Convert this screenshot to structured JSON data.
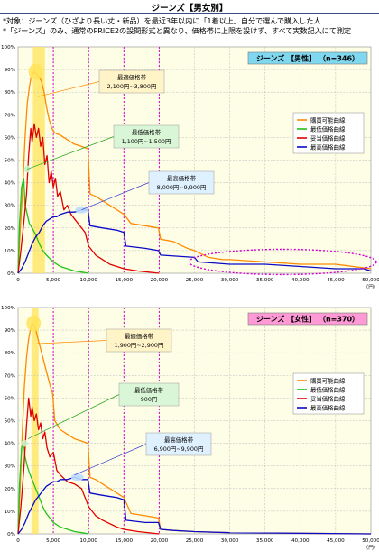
{
  "page": {
    "title": "ジーンズ【男女別】",
    "note1": "*対象：ジーンズ（ひざより長い丈・新品）を最近3年以内に「1着以上」自分で選んで購入した人",
    "note2": "*「ジーンズ」のみ、通常のPRICE2の設問形式と異なり、価格帯に上限を設けず、すべて実数記入にて測定"
  },
  "colors": {
    "purchase": "#ff8a00",
    "lowest": "#22c21a",
    "appropriate": "#e00000",
    "highest": "#0a0ac8",
    "plot_bg": "#fefee6",
    "band": "#ffe45a",
    "grid": "#b9b9b9",
    "guide": "#d400d4",
    "male_header_bg": "#7fd7f0",
    "female_header_bg": "#ff9ad6",
    "callout_bg": "#fff3c8",
    "callout_low_bg": "#d9f7d6",
    "callout_high_bg": "#dff0ff"
  },
  "chart_data": [
    {
      "type": "line",
      "title": "ジーンズ 【男性】 （n=346）",
      "xlabel": "（円）",
      "ylabel": "",
      "xlim": [
        0,
        50000
      ],
      "ylim": [
        0,
        100
      ],
      "x_ticks": [
        "0",
        "5,000",
        "10,000",
        "15,000",
        "20,000",
        "25,000",
        "30,000",
        "35,000",
        "40,000",
        "45,000",
        "50,000"
      ],
      "y_ticks": [
        "0%",
        "10%",
        "20%",
        "30%",
        "40%",
        "50%",
        "60%",
        "70%",
        "80%",
        "90%",
        "100%"
      ],
      "vertical_guides": [
        5000,
        10000,
        15000,
        20000
      ],
      "legend": [
        "購買可能曲線",
        "最低価格曲線",
        "妥当価格曲線",
        "最高価格曲線"
      ],
      "legend_position": "right",
      "series": [
        {
          "name": "購買可能曲線",
          "color_key": "purchase",
          "x": [
            0,
            300,
            700,
            1000,
            1300,
            1600,
            1800,
            2000,
            2300,
            2600,
            2900,
            3300,
            3700,
            4000,
            4400,
            4800,
            5200,
            6000,
            7000,
            8000,
            9000,
            9900,
            10200,
            11000,
            12000,
            13000,
            14000,
            15000,
            16000,
            18000,
            19900,
            20200,
            22000,
            24000,
            25000,
            27000,
            29000,
            30000,
            35000,
            40000,
            45000,
            50000
          ],
          "values": [
            0,
            18,
            40,
            60,
            75,
            82,
            86,
            88,
            89,
            88,
            87,
            85,
            80,
            74,
            68,
            64,
            62,
            61,
            59,
            57,
            56,
            55,
            35,
            34,
            32,
            30,
            28,
            26,
            22,
            21,
            20,
            15,
            14,
            11,
            10,
            7,
            6,
            6,
            5,
            4,
            4,
            2
          ]
        },
        {
          "name": "最低価格曲線",
          "color_key": "lowest",
          "x": [
            0,
            200,
            500,
            800,
            1000,
            1300,
            1600,
            2000,
            2500,
            3000,
            3500,
            4000,
            5000,
            6000,
            7000,
            8000,
            9000,
            10000
          ],
          "values": [
            0,
            22,
            38,
            42,
            30,
            26,
            22,
            20,
            17,
            13,
            10,
            8,
            5,
            3,
            2,
            1,
            0.5,
            0
          ]
        },
        {
          "name": "妥当価格曲線",
          "color_key": "appropriate",
          "x": [
            0,
            400,
            800,
            1200,
            1500,
            1800,
            2000,
            2300,
            2600,
            2900,
            3200,
            3500,
            3800,
            4100,
            4400,
            4700,
            5000,
            5300,
            5600,
            6000,
            6500,
            7000,
            7500,
            8000,
            8500,
            9000,
            9500,
            10000,
            11000,
            12000,
            13000,
            14000,
            15000,
            17000,
            20000
          ],
          "values": [
            0,
            10,
            22,
            35,
            52,
            64,
            58,
            66,
            60,
            64,
            56,
            60,
            48,
            52,
            40,
            45,
            38,
            42,
            34,
            36,
            28,
            30,
            26,
            24,
            22,
            20,
            18,
            12,
            8,
            6,
            4,
            3,
            2,
            1,
            0
          ]
        },
        {
          "name": "最高価格曲線",
          "color_key": "highest",
          "x": [
            0,
            500,
            1000,
            1500,
            2000,
            2500,
            3000,
            3500,
            4000,
            4500,
            5000,
            5500,
            6000,
            7000,
            8000,
            9000,
            9900,
            10200,
            12000,
            14000,
            15000,
            15300,
            18000,
            19900,
            20200,
            25000,
            25500,
            30000,
            35000,
            40000,
            45000,
            49000,
            50000
          ],
          "values": [
            0,
            2,
            5,
            9,
            13,
            16,
            18,
            21,
            23,
            24,
            25,
            25,
            26,
            27,
            27,
            28,
            28,
            21,
            20,
            19,
            18,
            12,
            11,
            10,
            8,
            7,
            5,
            4,
            4,
            3,
            2,
            2,
            1
          ]
        }
      ],
      "callouts": [
        {
          "title": "最適価格帯",
          "range": "2,100円~3,800円"
        },
        {
          "title": "最低価格帯",
          "range": "1,100円~1,500円"
        },
        {
          "title": "最高価格帯",
          "range": "8,000円~9,900円"
        }
      ]
    },
    {
      "type": "line",
      "title": "ジーンズ 【女性】 （n=370）",
      "xlabel": "（円）",
      "ylabel": "",
      "xlim": [
        0,
        50000
      ],
      "ylim": [
        0,
        100
      ],
      "x_ticks": [
        "0",
        "5,000",
        "10,000",
        "15,000",
        "20,000",
        "25,000",
        "30,000",
        "35,000",
        "40,000",
        "45,000",
        "50,000"
      ],
      "y_ticks": [
        "0%",
        "10%",
        "20%",
        "30%",
        "40%",
        "50%",
        "60%",
        "70%",
        "80%",
        "90%",
        "100%"
      ],
      "vertical_guides": [
        5000,
        10000,
        15000,
        20000
      ],
      "legend": [
        "購買可能曲線",
        "最低価格曲線",
        "妥当価格曲線",
        "最高価格曲線"
      ],
      "legend_position": "right",
      "series": [
        {
          "name": "購買可能曲線",
          "color_key": "purchase",
          "x": [
            0,
            300,
            600,
            900,
            1200,
            1500,
            1800,
            2000,
            2300,
            2600,
            3000,
            3500,
            4000,
            4500,
            4900,
            5200,
            6000,
            7000,
            8000,
            9000,
            9900,
            10200,
            11000,
            12000,
            13000,
            14000,
            15000,
            16000,
            18000,
            19900,
            20200,
            22000,
            25000,
            30000,
            50000
          ],
          "values": [
            0,
            20,
            45,
            65,
            78,
            86,
            91,
            93,
            92,
            89,
            84,
            78,
            72,
            66,
            62,
            50,
            46,
            44,
            42,
            41,
            40,
            25,
            24,
            22,
            20,
            18,
            16,
            9,
            8,
            7,
            2,
            1.5,
            1,
            0.5,
            0
          ]
        },
        {
          "name": "最低価格曲線",
          "color_key": "lowest",
          "x": [
            0,
            200,
            500,
            800,
            1000,
            1300,
            1600,
            2000,
            2500,
            3000,
            3500,
            4000,
            5000,
            6000,
            7000,
            8000,
            9000,
            10000
          ],
          "values": [
            0,
            22,
            38,
            40,
            34,
            30,
            27,
            24,
            20,
            16,
            12,
            9,
            5,
            3,
            2,
            1,
            0.5,
            0
          ]
        },
        {
          "name": "妥当価格曲線",
          "color_key": "appropriate",
          "x": [
            0,
            400,
            800,
            1200,
            1500,
            1800,
            2000,
            2300,
            2600,
            2900,
            3200,
            3500,
            3800,
            4100,
            4500,
            5000,
            5500,
            6000,
            7000,
            8000,
            9000,
            10000,
            11000,
            12000,
            14000,
            15000,
            17000,
            20000
          ],
          "values": [
            0,
            12,
            28,
            48,
            60,
            52,
            56,
            50,
            53,
            46,
            49,
            42,
            45,
            38,
            34,
            36,
            28,
            26,
            23,
            22,
            20,
            12,
            8,
            6,
            3,
            2,
            1,
            0
          ]
        },
        {
          "name": "最高価格曲線",
          "color_key": "highest",
          "x": [
            0,
            500,
            1000,
            1500,
            2000,
            2500,
            3000,
            3500,
            4000,
            4500,
            5000,
            5500,
            6000,
            7000,
            8000,
            9000,
            9900,
            10200,
            12000,
            14000,
            15000,
            15300,
            18000,
            19900,
            20200,
            22000,
            25000,
            30000,
            50000
          ],
          "values": [
            0,
            2,
            5,
            9,
            12,
            15,
            17,
            19,
            21,
            22,
            23,
            23,
            24,
            24,
            25,
            24,
            24,
            18,
            17,
            16,
            15,
            6,
            5,
            5,
            2,
            1.5,
            1,
            0.5,
            0
          ]
        }
      ],
      "callouts": [
        {
          "title": "最適価格帯",
          "range": "1,900円~2,900円"
        },
        {
          "title": "最低価格帯",
          "range": "900円"
        },
        {
          "title": "最高価格帯",
          "range": "6,900円~9,900円"
        }
      ]
    }
  ]
}
